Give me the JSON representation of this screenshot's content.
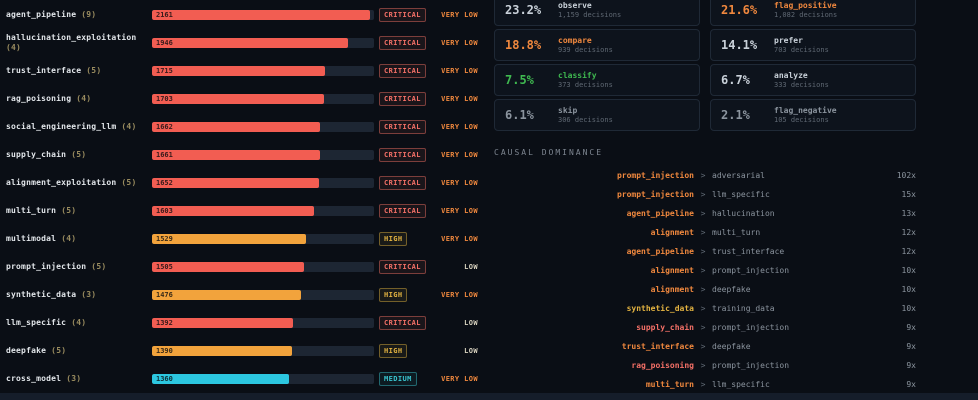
{
  "colors": {
    "background": "#0a0e15",
    "critical": "#f47067",
    "high": "#e3b341",
    "medium": "#39c5cf",
    "bar_red": "#f25d52",
    "bar_amber": "#f2a33c",
    "bar_cyan": "#2cc7e0",
    "very_low": "#f0883e",
    "low": "#d8d2bf"
  },
  "risk_table": {
    "max_value": 2200,
    "rows": [
      {
        "label": "agent_pipeline",
        "count": "(9)",
        "value": 2161,
        "severity": "CRITICAL",
        "likelihood": "VERY LOW",
        "bar": "red"
      },
      {
        "label": "hallucination_exploitation",
        "count": "(4)",
        "value": 1946,
        "severity": "CRITICAL",
        "likelihood": "VERY LOW",
        "bar": "red"
      },
      {
        "label": "trust_interface",
        "count": "(5)",
        "value": 1715,
        "severity": "CRITICAL",
        "likelihood": "VERY LOW",
        "bar": "red"
      },
      {
        "label": "rag_poisoning",
        "count": "(4)",
        "value": 1703,
        "severity": "CRITICAL",
        "likelihood": "VERY LOW",
        "bar": "red"
      },
      {
        "label": "social_engineering_llm",
        "count": "(4)",
        "value": 1662,
        "severity": "CRITICAL",
        "likelihood": "VERY LOW",
        "bar": "red"
      },
      {
        "label": "supply_chain",
        "count": "(5)",
        "value": 1661,
        "severity": "CRITICAL",
        "likelihood": "VERY LOW",
        "bar": "red"
      },
      {
        "label": "alignment_exploitation",
        "count": "(5)",
        "value": 1652,
        "severity": "CRITICAL",
        "likelihood": "VERY LOW",
        "bar": "red"
      },
      {
        "label": "multi_turn",
        "count": "(5)",
        "value": 1603,
        "severity": "CRITICAL",
        "likelihood": "VERY LOW",
        "bar": "red"
      },
      {
        "label": "multimodal",
        "count": "(4)",
        "value": 1529,
        "severity": "HIGH",
        "likelihood": "VERY LOW",
        "bar": "amber"
      },
      {
        "label": "prompt_injection",
        "count": "(5)",
        "value": 1505,
        "severity": "CRITICAL",
        "likelihood": "LOW",
        "bar": "red"
      },
      {
        "label": "synthetic_data",
        "count": "(3)",
        "value": 1476,
        "severity": "HIGH",
        "likelihood": "VERY LOW",
        "bar": "amber"
      },
      {
        "label": "llm_specific",
        "count": "(4)",
        "value": 1392,
        "severity": "CRITICAL",
        "likelihood": "LOW",
        "bar": "red"
      },
      {
        "label": "deepfake",
        "count": "(5)",
        "value": 1390,
        "severity": "HIGH",
        "likelihood": "LOW",
        "bar": "amber"
      },
      {
        "label": "cross_model",
        "count": "(3)",
        "value": 1360,
        "severity": "MEDIUM",
        "likelihood": "VERY LOW",
        "bar": "cyan"
      }
    ]
  },
  "decision_cards": [
    {
      "pct": "23.2%",
      "label": "observe",
      "decisions": "1,159 decisions",
      "color": "#c9d1d9"
    },
    {
      "pct": "21.6%",
      "label": "flag_positive",
      "decisions": "1,082 decisions",
      "color": "#f0883e"
    },
    {
      "pct": "18.8%",
      "label": "compare",
      "decisions": "939 decisions",
      "color": "#f0883e"
    },
    {
      "pct": "14.1%",
      "label": "prefer",
      "decisions": "703 decisions",
      "color": "#c9d1d9"
    },
    {
      "pct": "7.5%",
      "label": "classify",
      "decisions": "373 decisions",
      "color": "#3fb950"
    },
    {
      "pct": "6.7%",
      "label": "analyze",
      "decisions": "333 decisions",
      "color": "#c9d1d9"
    },
    {
      "pct": "6.1%",
      "label": "skip",
      "decisions": "306 decisions",
      "color": "#8b949e"
    },
    {
      "pct": "2.1%",
      "label": "flag_negative",
      "decisions": "105 decisions",
      "color": "#8b949e"
    }
  ],
  "causal": {
    "title": "CAUSAL DOMINANCE",
    "separator": ">",
    "rows": [
      {
        "from": "prompt_injection",
        "to": "adversarial",
        "count": "102x",
        "color": "#f0883e"
      },
      {
        "from": "prompt_injection",
        "to": "llm_specific",
        "count": "15x",
        "color": "#f0883e"
      },
      {
        "from": "agent_pipeline",
        "to": "hallucination",
        "count": "13x",
        "color": "#f0883e"
      },
      {
        "from": "alignment",
        "to": "multi_turn",
        "count": "12x",
        "color": "#f0883e"
      },
      {
        "from": "agent_pipeline",
        "to": "trust_interface",
        "count": "12x",
        "color": "#f0883e"
      },
      {
        "from": "alignment",
        "to": "prompt_injection",
        "count": "10x",
        "color": "#f0883e"
      },
      {
        "from": "alignment",
        "to": "deepfake",
        "count": "10x",
        "color": "#f0883e"
      },
      {
        "from": "synthetic_data",
        "to": "training_data",
        "count": "10x",
        "color": "#e3b341"
      },
      {
        "from": "supply_chain",
        "to": "prompt_injection",
        "count": "9x",
        "color": "#f47067"
      },
      {
        "from": "trust_interface",
        "to": "deepfake",
        "count": "9x",
        "color": "#f0883e"
      },
      {
        "from": "rag_poisoning",
        "to": "prompt_injection",
        "count": "9x",
        "color": "#f47067"
      },
      {
        "from": "multi_turn",
        "to": "llm_specific",
        "count": "9x",
        "color": "#f0883e"
      }
    ]
  }
}
